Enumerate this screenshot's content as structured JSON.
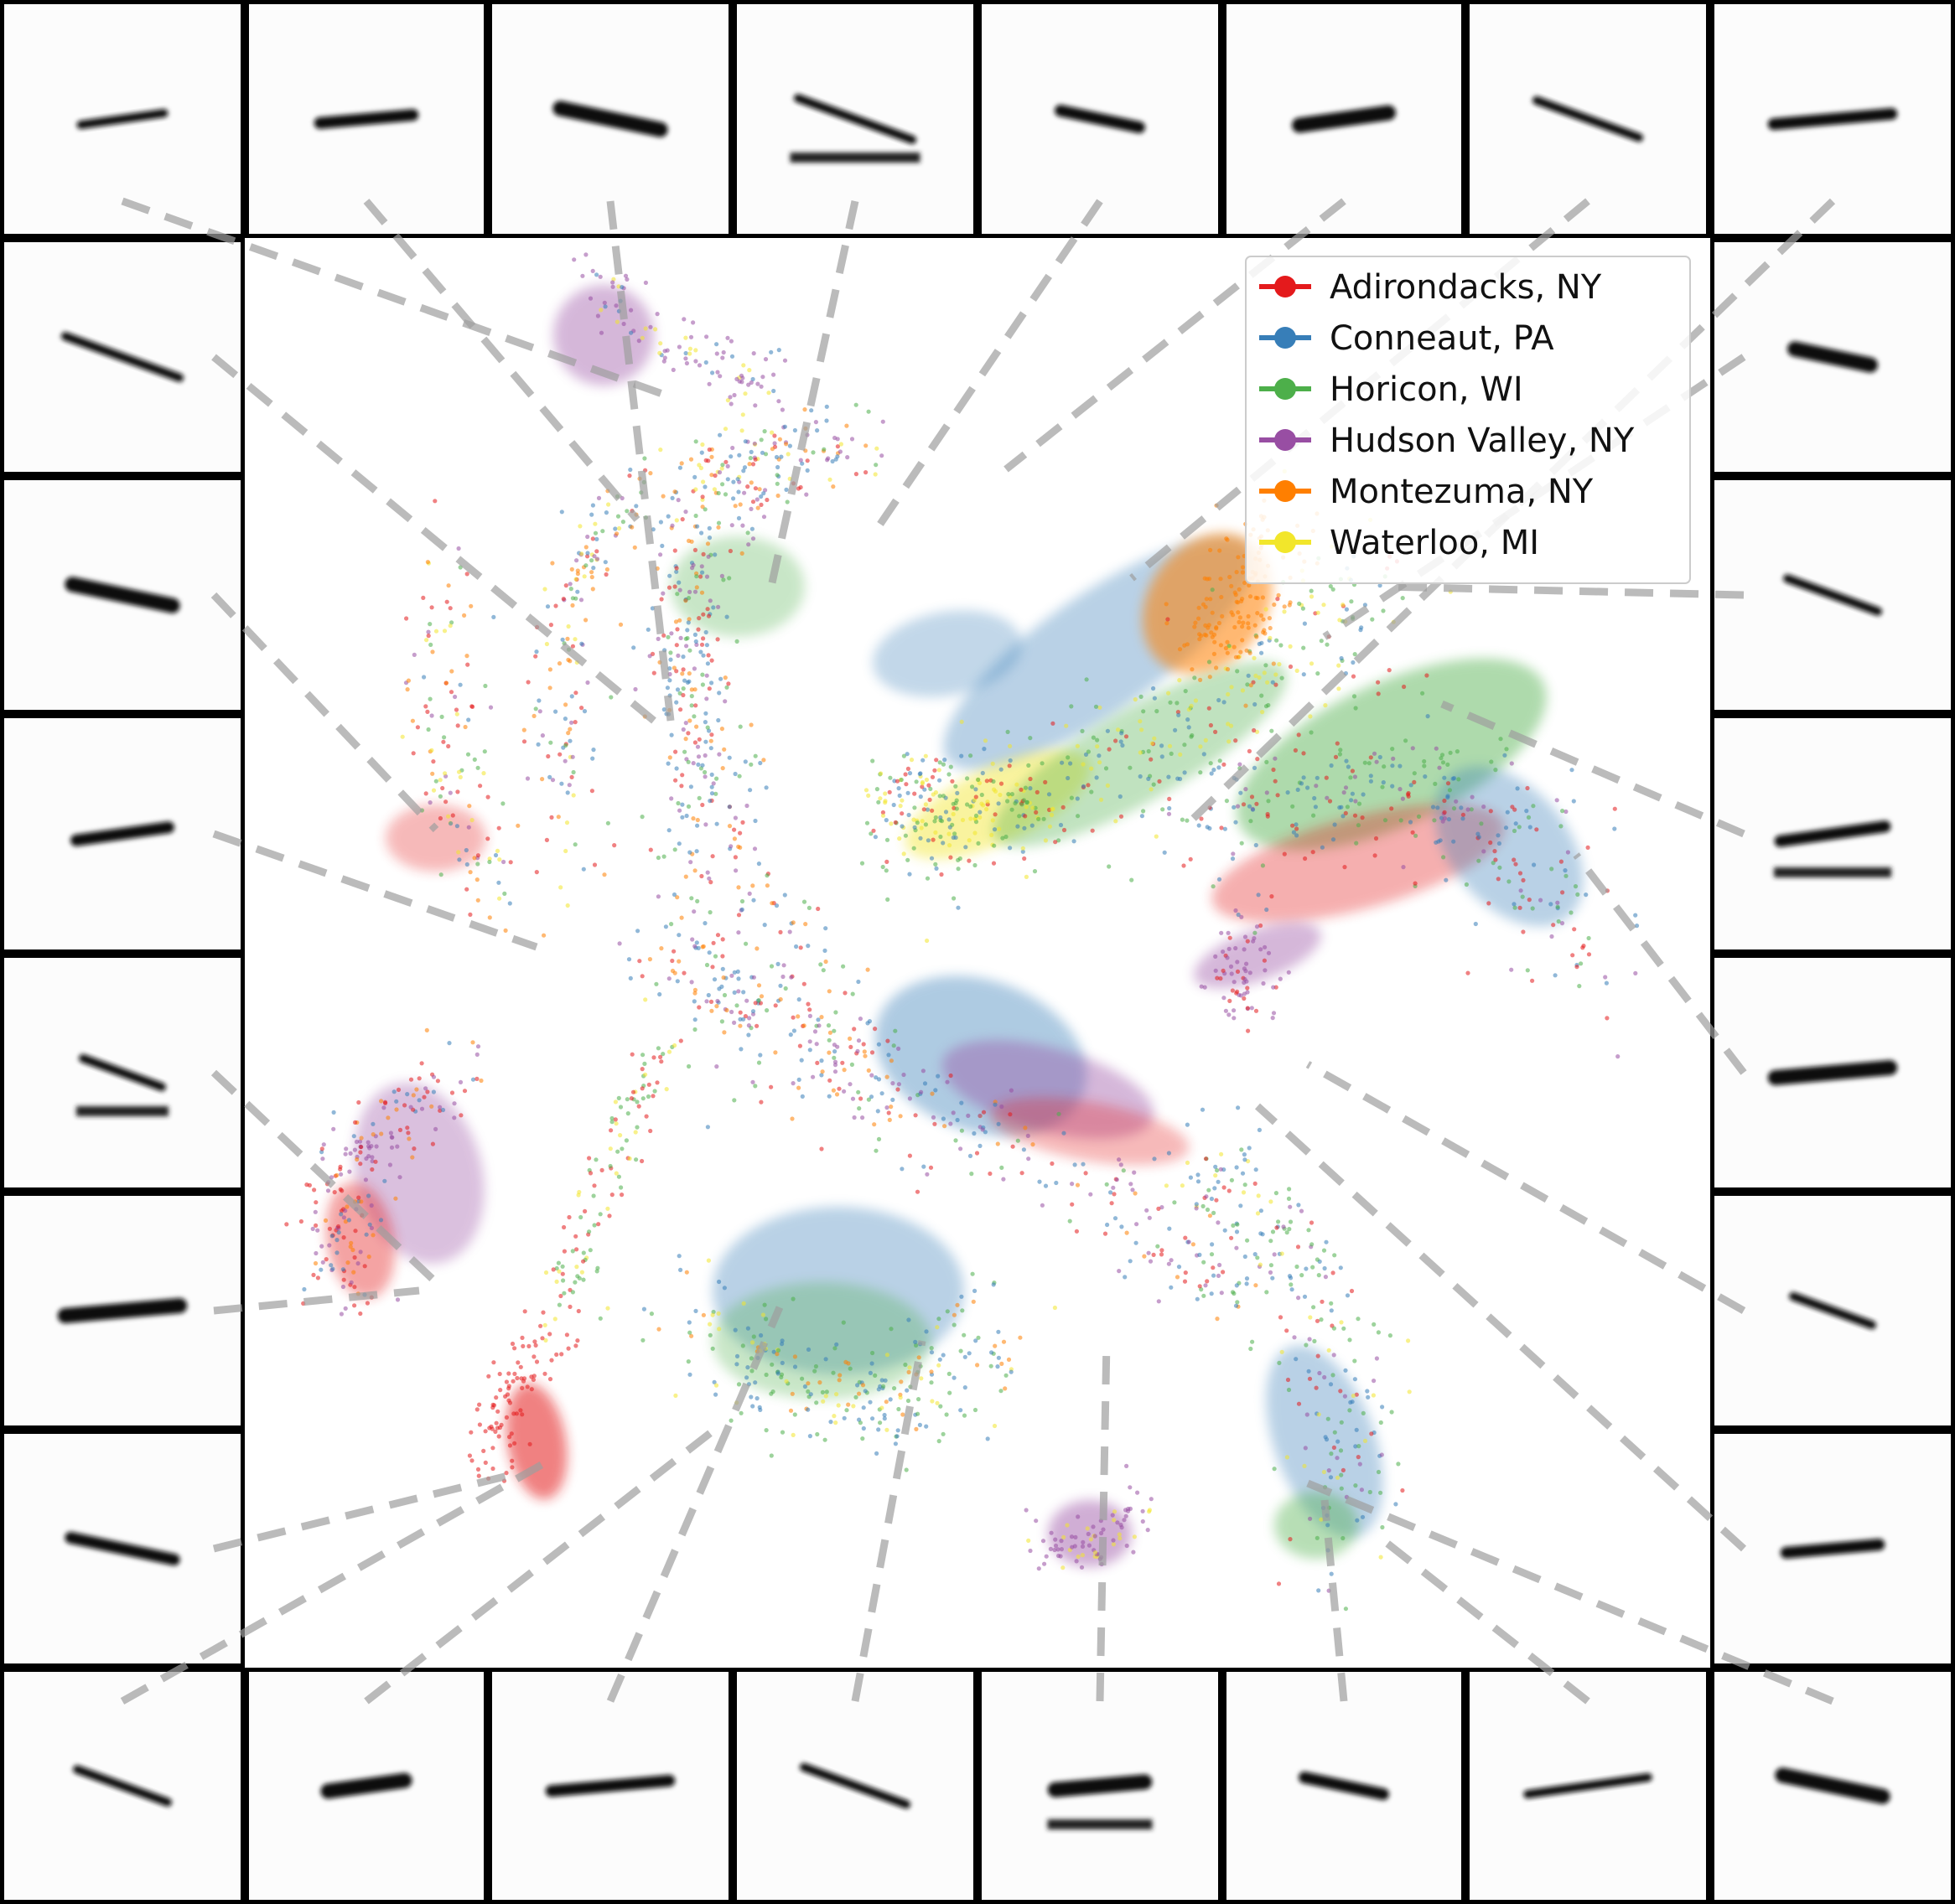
{
  "chart_data": {
    "type": "scatter",
    "title": "",
    "xlabel": "",
    "ylabel": "",
    "grid": false,
    "legend_placement": "top-right",
    "series": [
      {
        "name": "Adirondacks, NY",
        "color": "#e41a1c"
      },
      {
        "name": "Conneaut, PA",
        "color": "#377eb8"
      },
      {
        "name": "Horicon, WI",
        "color": "#4daf4a"
      },
      {
        "name": "Hudson Valley, NY",
        "color": "#984ea3"
      },
      {
        "name": "Montezuma, NY",
        "color": "#ff7f00"
      },
      {
        "name": "Waterloo, MI",
        "color": "#f2e62b"
      }
    ],
    "thumbnail_grid": {
      "columns": 8,
      "rows": 8,
      "thumbnail_count": 28,
      "connector_style": "dashed-gray",
      "thumbnail_content": "grayscale spectrogram snippets"
    }
  }
}
